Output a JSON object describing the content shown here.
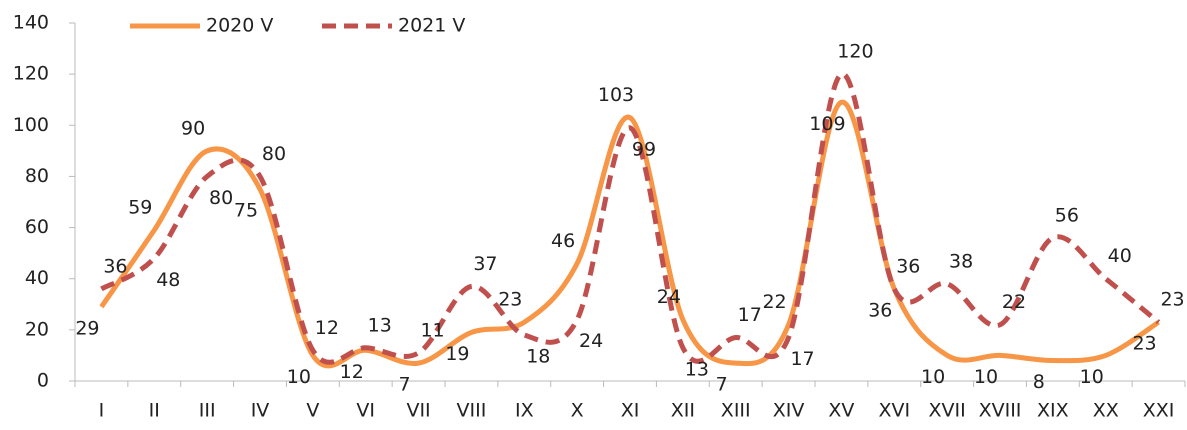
{
  "chart_data": {
    "type": "line",
    "categories": [
      "I",
      "II",
      "III",
      "IV",
      "V",
      "VI",
      "VII",
      "VIII",
      "IX",
      "X",
      "XI",
      "XII",
      "XIII",
      "XIV",
      "XV",
      "XVI",
      "XVII",
      "XVIII",
      "XIX",
      "XX",
      "XXI"
    ],
    "series": [
      {
        "name": "2020 V",
        "color": "#f79646",
        "dash": false,
        "values": [
          29,
          59,
          90,
          75,
          10,
          12,
          7,
          19,
          23,
          46,
          103,
          24,
          7,
          22,
          109,
          36,
          10,
          10,
          8,
          10,
          23
        ]
      },
      {
        "name": "2021 V",
        "color": "#c0504d",
        "dash": true,
        "values": [
          36,
          48,
          80,
          80,
          12,
          13,
          11,
          37,
          18,
          24,
          99,
          13,
          17,
          17,
          120,
          36,
          38,
          22,
          56,
          40,
          23
        ]
      }
    ],
    "ylim": [
      0,
      140
    ],
    "yticks": [
      0,
      20,
      40,
      60,
      80,
      100,
      120,
      140
    ],
    "legend": "top"
  }
}
